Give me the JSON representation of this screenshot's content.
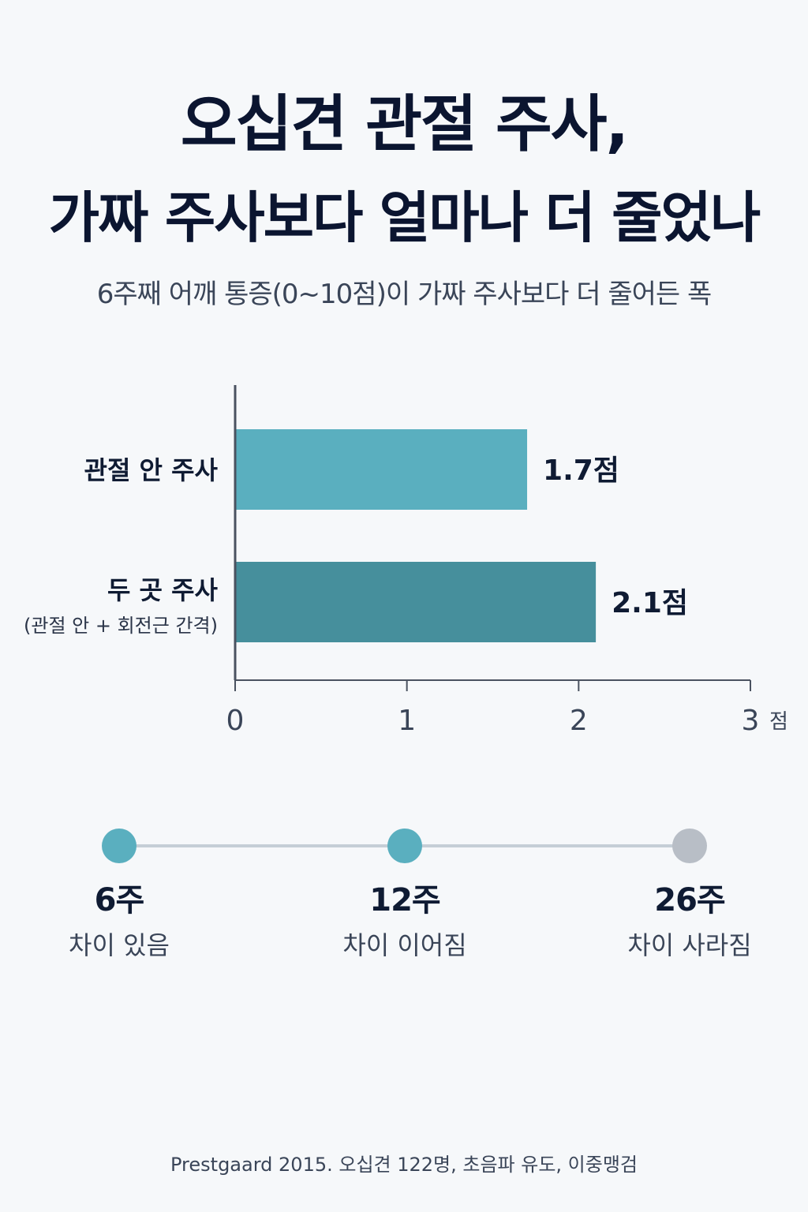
{
  "title": {
    "line1": "오십견 관절 주사,",
    "line2": "가짜 주사보다 얼마나 더 줄었나"
  },
  "subtitle": "6주째 어깨 통증(0~10점)이 가짜 주사보다 더 줄어든 폭",
  "colors": {
    "bar_1": "#5aafbf",
    "bar_2": "#468f9c",
    "axis": "#4a5260",
    "timeline_line": "#c5ced6",
    "dot_active": "#5aafbf",
    "dot_inactive": "#b8bec6"
  },
  "chart_data": {
    "type": "bar",
    "orientation": "horizontal",
    "categories": [
      {
        "label": "관절 안 주사",
        "sublabel": ""
      },
      {
        "label": "두 곳 주사",
        "sublabel": "(관절 안 + 회전근 간격)"
      }
    ],
    "values": [
      1.7,
      2.1
    ],
    "value_labels": [
      "1.7점",
      "2.1점"
    ],
    "xlim": [
      0,
      3
    ],
    "ticks": [
      "0",
      "1",
      "2",
      "3"
    ],
    "unit": "점",
    "grid": false
  },
  "timeline": [
    {
      "week": "6주",
      "desc": "차이 있음",
      "status": "active"
    },
    {
      "week": "12주",
      "desc": "차이 이어짐",
      "status": "active"
    },
    {
      "week": "26주",
      "desc": "차이 사라짐",
      "status": "inactive"
    }
  ],
  "footnote": "Prestgaard 2015. 오십견 122명, 초음파 유도, 이중맹검"
}
